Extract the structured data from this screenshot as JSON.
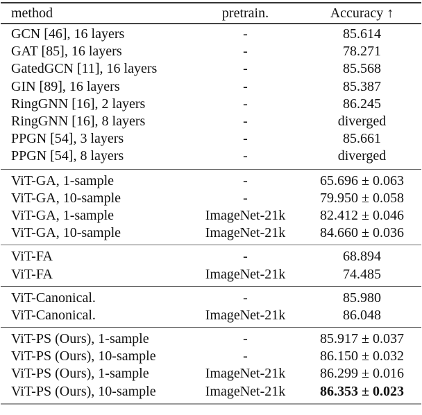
{
  "table": {
    "columns": [
      "method",
      "pretrain.",
      "Accuracy ↑"
    ],
    "groups": [
      {
        "rows": [
          {
            "method": "GCN [46], 16 layers",
            "pretrain": "-",
            "accuracy": "85.614"
          },
          {
            "method": "GAT [85], 16 layers",
            "pretrain": "-",
            "accuracy": "78.271"
          },
          {
            "method": "GatedGCN [11], 16 layers",
            "pretrain": "-",
            "accuracy": "85.568"
          },
          {
            "method": "GIN [89], 16 layers",
            "pretrain": "-",
            "accuracy": "85.387"
          },
          {
            "method": "RingGNN [16], 2 layers",
            "pretrain": "-",
            "accuracy": "86.245"
          },
          {
            "method": "RingGNN [16], 8 layers",
            "pretrain": "-",
            "accuracy": "diverged"
          },
          {
            "method": "PPGN [54], 3 layers",
            "pretrain": "-",
            "accuracy": "85.661"
          },
          {
            "method": "PPGN [54], 8 layers",
            "pretrain": "-",
            "accuracy": "diverged"
          }
        ]
      },
      {
        "rows": [
          {
            "method": "ViT-GA, 1-sample",
            "pretrain": "-",
            "accuracy": "65.696 ± 0.063"
          },
          {
            "method": "ViT-GA, 10-sample",
            "pretrain": "-",
            "accuracy": "79.950 ± 0.058"
          },
          {
            "method": "ViT-GA, 1-sample",
            "pretrain": "ImageNet-21k",
            "accuracy": "82.412 ± 0.046"
          },
          {
            "method": "ViT-GA, 10-sample",
            "pretrain": "ImageNet-21k",
            "accuracy": "84.660 ± 0.036"
          }
        ]
      },
      {
        "rows": [
          {
            "method": "ViT-FA",
            "pretrain": "-",
            "accuracy": "68.894"
          },
          {
            "method": "ViT-FA",
            "pretrain": "ImageNet-21k",
            "accuracy": "74.485"
          }
        ]
      },
      {
        "rows": [
          {
            "method": "ViT-Canonical.",
            "pretrain": "-",
            "accuracy": "85.980"
          },
          {
            "method": "ViT-Canonical.",
            "pretrain": "ImageNet-21k",
            "accuracy": "86.048"
          }
        ]
      },
      {
        "rows": [
          {
            "method": "ViT-PS (Ours), 1-sample",
            "pretrain": "-",
            "accuracy": "85.917 ± 0.037"
          },
          {
            "method": "ViT-PS (Ours), 10-sample",
            "pretrain": "-",
            "accuracy": "86.150 ± 0.032"
          },
          {
            "method": "ViT-PS (Ours), 1-sample",
            "pretrain": "ImageNet-21k",
            "accuracy": "86.299 ± 0.016"
          },
          {
            "method": "ViT-PS (Ours), 10-sample",
            "pretrain": "ImageNet-21k",
            "accuracy": "86.353 ± 0.023",
            "bold": true
          }
        ]
      }
    ]
  }
}
